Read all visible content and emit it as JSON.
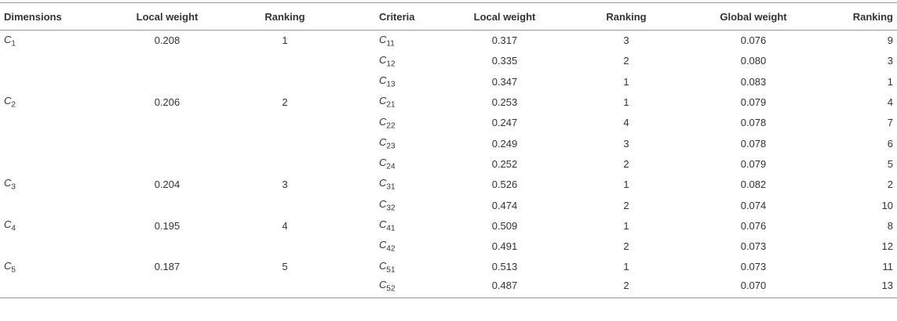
{
  "table": {
    "header": [
      "Dimensions",
      "Local weight",
      "Ranking",
      "Criteria",
      "Local weight",
      "Ranking",
      "Global weight",
      "Ranking"
    ],
    "groups": [
      {
        "dimension": {
          "base": "C",
          "sub": "1"
        },
        "local_weight": "0.208",
        "ranking": "1",
        "criteria": [
          {
            "name": {
              "base": "C",
              "sub": "11"
            },
            "local_weight": "0.317",
            "ranking": "3",
            "global_weight": "0.076",
            "global_ranking": "9"
          },
          {
            "name": {
              "base": "C",
              "sub": "12"
            },
            "local_weight": "0.335",
            "ranking": "2",
            "global_weight": "0.080",
            "global_ranking": "3"
          },
          {
            "name": {
              "base": "C",
              "sub": "13"
            },
            "local_weight": "0.347",
            "ranking": "1",
            "global_weight": "0.083",
            "global_ranking": "1"
          }
        ]
      },
      {
        "dimension": {
          "base": "C",
          "sub": "2"
        },
        "local_weight": "0.206",
        "ranking": "2",
        "criteria": [
          {
            "name": {
              "base": "C",
              "sub": "21"
            },
            "local_weight": "0.253",
            "ranking": "1",
            "global_weight": "0.079",
            "global_ranking": "4"
          },
          {
            "name": {
              "base": "C",
              "sub": "22"
            },
            "local_weight": "0.247",
            "ranking": "4",
            "global_weight": "0.078",
            "global_ranking": "7"
          },
          {
            "name": {
              "base": "C",
              "sub": "23"
            },
            "local_weight": "0.249",
            "ranking": "3",
            "global_weight": "0.078",
            "global_ranking": "6"
          },
          {
            "name": {
              "base": "C",
              "sub": "24"
            },
            "local_weight": "0.252",
            "ranking": "2",
            "global_weight": "0.079",
            "global_ranking": "5"
          }
        ]
      },
      {
        "dimension": {
          "base": "C",
          "sub": "3"
        },
        "local_weight": "0.204",
        "ranking": "3",
        "criteria": [
          {
            "name": {
              "base": "C",
              "sub": "31"
            },
            "local_weight": "0.526",
            "ranking": "1",
            "global_weight": "0.082",
            "global_ranking": "2"
          },
          {
            "name": {
              "base": "C",
              "sub": "32"
            },
            "local_weight": "0.474",
            "ranking": "2",
            "global_weight": "0.074",
            "global_ranking": "10"
          }
        ]
      },
      {
        "dimension": {
          "base": "C",
          "sub": "4"
        },
        "local_weight": "0.195",
        "ranking": "4",
        "criteria": [
          {
            "name": {
              "base": "C",
              "sub": "41"
            },
            "local_weight": "0.509",
            "ranking": "1",
            "global_weight": "0.076",
            "global_ranking": "8"
          },
          {
            "name": {
              "base": "C",
              "sub": "42"
            },
            "local_weight": "0.491",
            "ranking": "2",
            "global_weight": "0.073",
            "global_ranking": "12"
          }
        ]
      },
      {
        "dimension": {
          "base": "C",
          "sub": "5"
        },
        "local_weight": "0.187",
        "ranking": "5",
        "criteria": [
          {
            "name": {
              "base": "C",
              "sub": "51"
            },
            "local_weight": "0.513",
            "ranking": "1",
            "global_weight": "0.073",
            "global_ranking": "11"
          },
          {
            "name": {
              "base": "C",
              "sub": "52"
            },
            "local_weight": "0.487",
            "ranking": "2",
            "global_weight": "0.070",
            "global_ranking": "13"
          }
        ]
      }
    ]
  }
}
